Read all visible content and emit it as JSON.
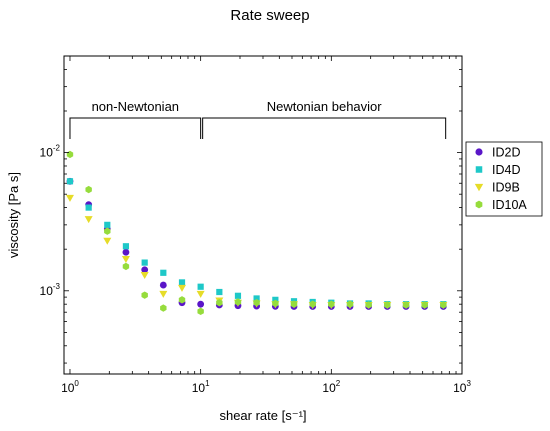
{
  "chart_data": {
    "type": "scatter",
    "title": "Rate sweep",
    "xlabel": "shear rate [s⁻¹]",
    "ylabel": "viscosity [Pa s]",
    "x_scale": "log",
    "y_scale": "log",
    "xlim": [
      0.9,
      1000
    ],
    "ylim": [
      0.00025,
      0.05
    ],
    "x_ticks": [
      {
        "value": 1,
        "base": "10",
        "exp": "0"
      },
      {
        "value": 10,
        "base": "10",
        "exp": "1"
      },
      {
        "value": 100,
        "base": "10",
        "exp": "2"
      },
      {
        "value": 1000,
        "base": "10",
        "exp": "3"
      }
    ],
    "y_ticks": [
      {
        "value": 0.001,
        "base": "10",
        "exp": "-3"
      },
      {
        "value": 0.01,
        "base": "10",
        "exp": "-2"
      }
    ],
    "grid": false,
    "legend": "outside-right",
    "annotations": [
      {
        "label": "non-Newtonian",
        "x_range": [
          1,
          10
        ]
      },
      {
        "label": "Newtonian behavior",
        "x_range": [
          10,
          750
        ]
      }
    ],
    "series": [
      {
        "name": "ID2D",
        "marker": "circle",
        "color": "#5a16c8",
        "x": [
          1,
          1.39,
          1.93,
          2.68,
          3.73,
          5.18,
          7.2,
          10,
          13.9,
          19.3,
          26.8,
          37.3,
          51.8,
          72,
          100,
          139,
          193,
          268,
          373,
          518,
          720
        ],
        "y": [
          0.0062,
          0.0042,
          0.0028,
          0.0019,
          0.00142,
          0.0011,
          0.00082,
          0.0008,
          0.00079,
          0.00078,
          0.000775,
          0.000772,
          0.00077,
          0.00077,
          0.00077,
          0.00077,
          0.00077,
          0.00077,
          0.00077,
          0.00077,
          0.00077
        ]
      },
      {
        "name": "ID4D",
        "marker": "square",
        "color": "#1ec8c8",
        "x": [
          1,
          1.39,
          1.93,
          2.68,
          3.73,
          5.18,
          7.2,
          10,
          13.9,
          19.3,
          26.8,
          37.3,
          51.8,
          72,
          100,
          139,
          193,
          268,
          373,
          518,
          720
        ],
        "y": [
          0.0062,
          0.004,
          0.003,
          0.0021,
          0.0016,
          0.00135,
          0.00115,
          0.00107,
          0.00098,
          0.00092,
          0.00088,
          0.00086,
          0.00084,
          0.00083,
          0.00082,
          0.00081,
          0.00081,
          0.0008,
          0.0008,
          0.0008,
          0.0008
        ]
      },
      {
        "name": "ID9B",
        "marker": "triangle-down",
        "color": "#e6dc28",
        "x": [
          1,
          1.39,
          1.93,
          2.68,
          3.73,
          5.18,
          7.2,
          10,
          13.9,
          19.3,
          26.8,
          37.3,
          51.8,
          72,
          100,
          139,
          193,
          268,
          373,
          518,
          720
        ],
        "y": [
          0.0047,
          0.0033,
          0.0023,
          0.0017,
          0.0013,
          0.00095,
          0.00105,
          0.00095,
          0.00085,
          0.00082,
          0.00081,
          0.0008,
          0.0008,
          0.00079,
          0.00079,
          0.00079,
          0.00079,
          0.00079,
          0.00079,
          0.00079,
          0.00079
        ]
      },
      {
        "name": "ID10A",
        "marker": "hexagon",
        "color": "#96dc3c",
        "x": [
          1,
          1.39,
          1.93,
          2.68,
          3.73,
          5.18,
          7.2,
          10,
          13.9,
          19.3,
          26.8,
          37.3,
          51.8,
          72,
          100,
          139,
          193,
          268,
          373,
          518,
          720
        ],
        "y": [
          0.0097,
          0.0054,
          0.0027,
          0.0015,
          0.00093,
          0.00075,
          0.00086,
          0.00071,
          0.00082,
          0.00083,
          0.00082,
          0.00081,
          0.0008,
          0.0008,
          0.0008,
          0.0008,
          0.00079,
          0.00079,
          0.00079,
          0.00079,
          0.00079
        ]
      }
    ]
  }
}
